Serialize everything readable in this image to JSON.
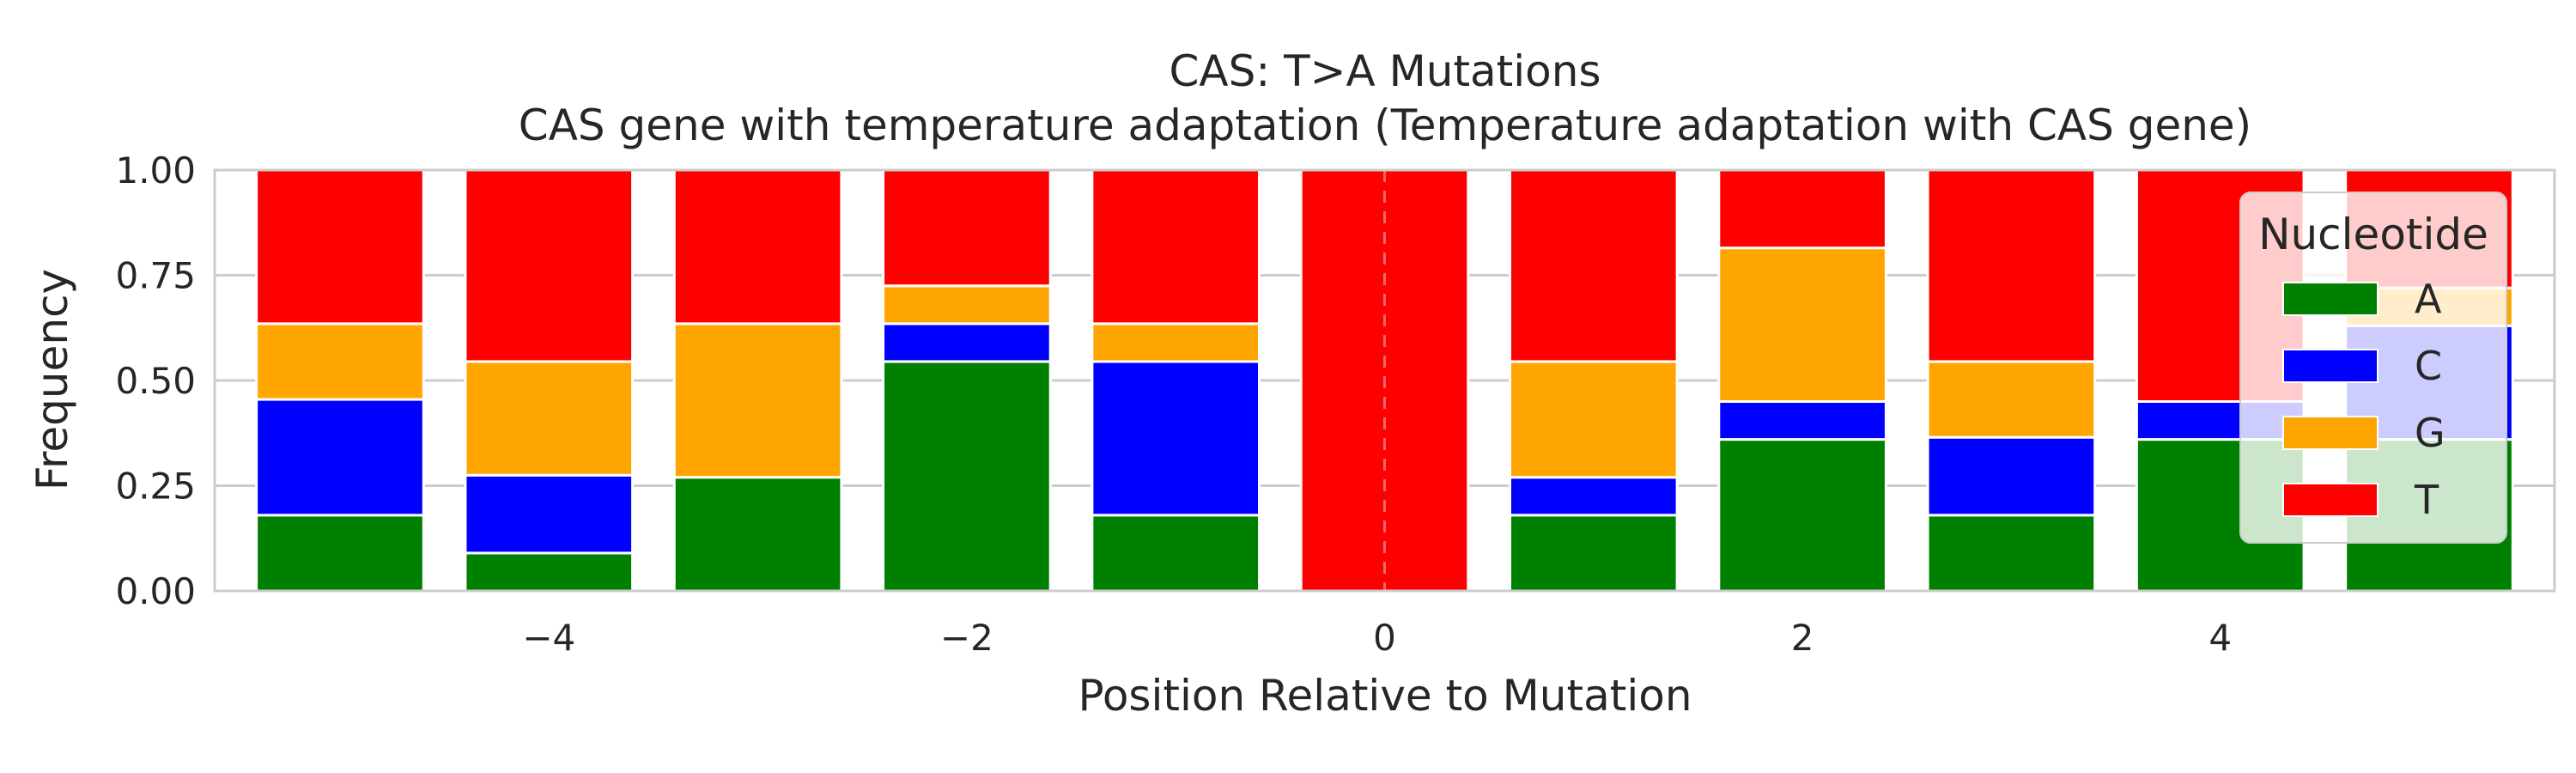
{
  "chart_data": {
    "type": "bar",
    "stacked": true,
    "title": "CAS: T>A Mutations",
    "subtitle": "CAS gene with temperature adaptation (Temperature adaptation with CAS gene)",
    "xlabel": "Position Relative to Mutation",
    "ylabel": "Frequency",
    "x": [
      -5,
      -4,
      -3,
      -2,
      -1,
      0,
      1,
      2,
      3,
      4,
      5
    ],
    "xlim": [
      -5.6,
      5.6
    ],
    "ylim": [
      0,
      1
    ],
    "xticks": [
      -4,
      -2,
      0,
      2,
      4
    ],
    "xtick_labels": [
      "−4",
      "−2",
      "0",
      "2",
      "4"
    ],
    "yticks": [
      0,
      0.25,
      0.5,
      0.75,
      1.0
    ],
    "ytick_labels": [
      "0.00",
      "0.25",
      "0.50",
      "0.75",
      "1.00"
    ],
    "grid": true,
    "mutation_line_x": 0,
    "legend": {
      "title": "Nucleotide",
      "placement": "right"
    },
    "series": [
      {
        "name": "A",
        "color": "#008000",
        "values": [
          0.18,
          0.09,
          0.27,
          0.545,
          0.18,
          0,
          0.18,
          0.36,
          0.18,
          0.36,
          0.36
        ]
      },
      {
        "name": "C",
        "color": "#0000ff",
        "values": [
          0.275,
          0.185,
          0,
          0.09,
          0.365,
          0,
          0.09,
          0.09,
          0.185,
          0.09,
          0.27
        ]
      },
      {
        "name": "G",
        "color": "#ffa500",
        "values": [
          0.18,
          0.27,
          0.365,
          0.09,
          0.09,
          0,
          0.275,
          0.365,
          0.18,
          0,
          0.09
        ]
      },
      {
        "name": "T",
        "color": "#ff0000",
        "values": [
          0.365,
          0.455,
          0.365,
          0.275,
          0.365,
          1.0,
          0.455,
          0.185,
          0.455,
          0.55,
          0.28
        ]
      }
    ]
  }
}
